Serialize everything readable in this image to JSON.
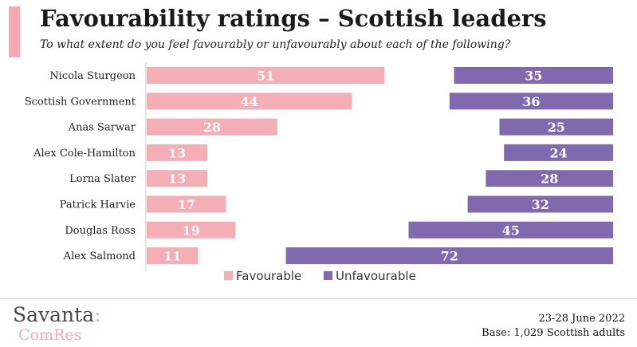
{
  "title": "Favourability ratings – Scottish leaders",
  "subtitle": "To what extent do you feel favourably or unfavourably about each of the following?",
  "brand": {
    "name_top": "Savanta",
    "colon": ":",
    "name_bottom": "ComRes"
  },
  "footer": {
    "date": "23-28 June 2022",
    "base": "Base: 1,029 Scottish adults"
  },
  "colors": {
    "favourable": "#f4aeb6",
    "unfavourable": "#8169ad",
    "accent": "#f4a9b3"
  },
  "chart_data": {
    "type": "bar",
    "orientation": "horizontal",
    "categories": [
      "Nicola Sturgeon",
      "Scottish Government",
      "Anas Sarwar",
      "Alex Cole-Hamilton",
      "Lorna Slater",
      "Patrick Harvie",
      "Douglas Ross",
      "Alex Salmond"
    ],
    "series": [
      {
        "name": "Favourable",
        "values": [
          51,
          44,
          28,
          13,
          13,
          17,
          19,
          11
        ]
      },
      {
        "name": "Unfavourable",
        "values": [
          35,
          36,
          25,
          24,
          28,
          32,
          45,
          72
        ]
      }
    ],
    "legend_position": "bottom",
    "grid": false
  }
}
